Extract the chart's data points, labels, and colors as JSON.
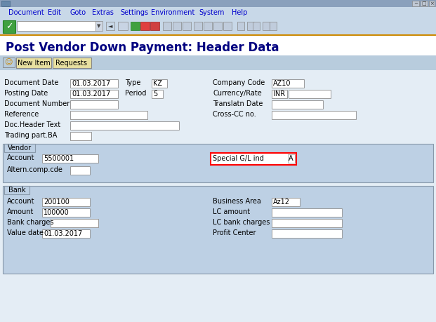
{
  "title": "Post Vendor Down Payment: Header Data",
  "bg_main": "#dce6f0",
  "bg_white": "#ffffff",
  "bg_toolbar": "#c8d8e8",
  "bg_header_blue": "#3366aa",
  "bg_section": "#bdd0e4",
  "bg_button": "#e8e0a0",
  "bg_titlebar": "#8aa0bc",
  "bg_form": "#e4edf5",
  "color_menu": "#0000cc",
  "color_title": "#000080",
  "color_label": "#000000",
  "menu_items": [
    "Document",
    "Edit",
    "Goto",
    "Extras",
    "Settings",
    "Environment",
    "System",
    "Help"
  ],
  "menu_x": [
    12,
    68,
    99,
    131,
    171,
    215,
    283,
    330
  ],
  "type_val": "KZ",
  "period_val": "5",
  "company_code_val": "AZ10",
  "currency_val": "INR",
  "doc_date_val": "01.03.2017",
  "post_date_val": "01.03.2017",
  "vendor_account_val": "5500001",
  "special_gl_val": "A",
  "bank_account_val": "200100",
  "bank_amount_val": "100000",
  "value_date_val": "01.03.2017",
  "business_area_val": "Az12"
}
